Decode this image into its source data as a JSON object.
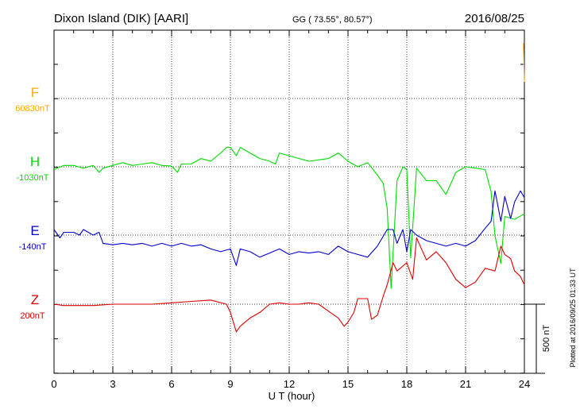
{
  "header": {
    "station": "Dixon Island (DIK)  [AARI]",
    "coords": "GG ( 73.55°,  80.57°)",
    "date": "2016/08/25"
  },
  "side_note": "Plotted at 2016/09/25 01:33 UT",
  "colors": {
    "F": "#ffaa00",
    "H": "#00dd00",
    "E": "#0000cc",
    "Z": "#dd0000",
    "grid": "#000000"
  },
  "chart_data": {
    "type": "line",
    "xlabel": "U T (hour)",
    "xlim": [
      0,
      24
    ],
    "xticks": [
      0,
      3,
      6,
      9,
      12,
      15,
      18,
      21,
      24
    ],
    "scale_bar": "500 nT",
    "channels": [
      {
        "name": "F",
        "baseline": "60830nT"
      },
      {
        "name": "H",
        "baseline": "-1030nT"
      },
      {
        "name": "E",
        "baseline": "-140nT"
      },
      {
        "name": "Z",
        "baseline": "200nT"
      }
    ],
    "series": [
      {
        "name": "F",
        "note": "only a short segment near 24 UT",
        "x": [
          23.95,
          24.0
        ],
        "y": [
          400,
          120
        ]
      },
      {
        "name": "H",
        "x": [
          0,
          0.5,
          1.0,
          1.5,
          2.0,
          2.3,
          2.5,
          3.0,
          3.5,
          4.0,
          4.5,
          5.0,
          5.5,
          6.0,
          6.3,
          6.5,
          7.0,
          7.5,
          8.0,
          8.5,
          8.8,
          9.0,
          9.3,
          9.5,
          10.0,
          10.5,
          11.0,
          11.3,
          11.5,
          12.0,
          12.5,
          13.0,
          13.5,
          14.0,
          14.5,
          15.0,
          15.5,
          16.0,
          16.5,
          16.8,
          17.0,
          17.2,
          17.5,
          17.8,
          18.0,
          18.2,
          18.5,
          19.0,
          19.5,
          20.0,
          20.5,
          21.0,
          21.5,
          22.0,
          22.3,
          22.5,
          22.8,
          23.0,
          23.5,
          24.0
        ],
        "y": [
          -20,
          10,
          10,
          -10,
          10,
          -40,
          -10,
          10,
          30,
          10,
          20,
          30,
          10,
          5,
          -40,
          20,
          20,
          60,
          40,
          100,
          140,
          140,
          80,
          140,
          100,
          60,
          40,
          20,
          100,
          80,
          60,
          40,
          50,
          60,
          100,
          40,
          0,
          30,
          -60,
          -120,
          -300,
          -880,
          -100,
          0,
          -20,
          -660,
          -10,
          -100,
          -100,
          -200,
          -40,
          0,
          -10,
          -20,
          -180,
          -500,
          -700,
          -360,
          -380,
          -340
        ]
      },
      {
        "name": "E",
        "x": [
          0,
          0.3,
          0.5,
          1.0,
          1.3,
          1.5,
          2.0,
          2.3,
          2.5,
          3.0,
          3.5,
          4.0,
          4.5,
          5.0,
          5.5,
          6.0,
          6.5,
          7.0,
          7.5,
          8.0,
          8.5,
          9.0,
          9.3,
          9.5,
          10.0,
          10.5,
          11.0,
          11.5,
          12.0,
          12.5,
          13.0,
          13.5,
          14.0,
          14.5,
          15.0,
          15.5,
          16.0,
          16.5,
          17.0,
          17.3,
          17.5,
          17.8,
          18.0,
          18.2,
          18.5,
          19.0,
          19.5,
          20.0,
          20.5,
          21.0,
          21.5,
          22.0,
          22.3,
          22.5,
          22.8,
          23.0,
          23.3,
          23.5,
          23.8,
          24.0
        ],
        "y": [
          40,
          -20,
          20,
          20,
          0,
          40,
          0,
          20,
          -60,
          -70,
          -60,
          -70,
          -60,
          -80,
          -60,
          -80,
          -60,
          -80,
          -70,
          -100,
          -120,
          -100,
          -220,
          -100,
          -120,
          -160,
          -130,
          -100,
          -140,
          -120,
          -130,
          -120,
          -140,
          -80,
          -120,
          -140,
          -160,
          -80,
          40,
          40,
          -60,
          40,
          -120,
          40,
          0,
          -40,
          -60,
          -80,
          -60,
          -80,
          -40,
          50,
          100,
          320,
          100,
          280,
          120,
          240,
          320,
          270
        ]
      },
      {
        "name": "Z",
        "x": [
          0,
          0.5,
          1.0,
          2.0,
          3.0,
          4.0,
          5.0,
          6.0,
          7.0,
          8.0,
          8.8,
          9.0,
          9.3,
          9.5,
          10.0,
          10.5,
          11.0,
          11.5,
          12.0,
          12.5,
          13.0,
          13.5,
          14.0,
          14.5,
          14.8,
          15.0,
          15.3,
          15.5,
          16.0,
          16.2,
          16.5,
          16.8,
          17.0,
          17.3,
          17.5,
          18.0,
          18.3,
          18.5,
          19.0,
          19.5,
          20.0,
          20.5,
          21.0,
          21.5,
          22.0,
          22.5,
          22.8,
          23.0,
          23.3,
          23.5,
          23.8,
          24.0
        ],
        "y": [
          0,
          -10,
          -10,
          -10,
          0,
          0,
          0,
          10,
          20,
          30,
          0,
          -60,
          -200,
          -160,
          -100,
          -60,
          0,
          10,
          0,
          0,
          10,
          0,
          -50,
          -100,
          -160,
          -130,
          -60,
          40,
          40,
          -110,
          -80,
          60,
          140,
          300,
          240,
          300,
          180,
          480,
          320,
          380,
          300,
          180,
          120,
          160,
          260,
          240,
          420,
          360,
          330,
          240,
          200,
          140
        ]
      }
    ]
  }
}
